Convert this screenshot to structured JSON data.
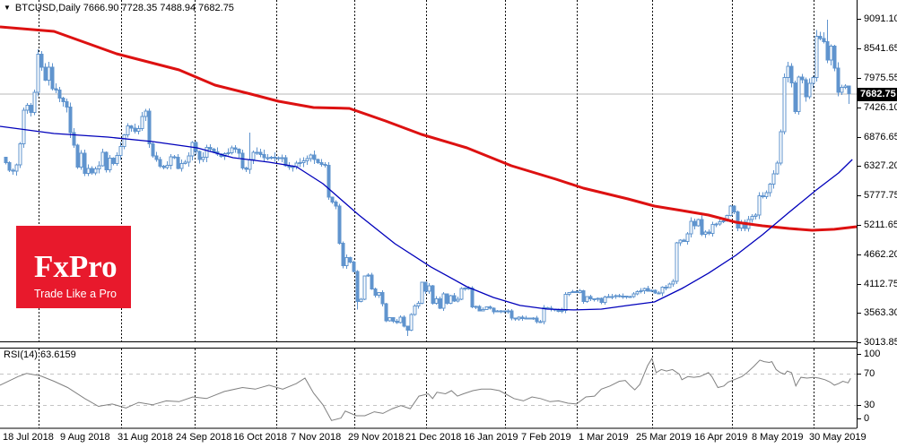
{
  "window": {
    "title": "BTCUSD,Daily 7666.90 7728.35 7488.94 7682.75"
  },
  "logo": {
    "brand": "FxPro",
    "tagline": "Trade Like a Pro",
    "bg_color": "#e8192c",
    "text_color": "#ffffff"
  },
  "price_tag": "7682.75",
  "indicator_label": "RSI(14) 63.6159",
  "colors": {
    "candle": "#6094ce",
    "ma_fast_blue": "#0000bb",
    "ma_slow_red": "#dd1111",
    "grid": "#000000",
    "rsi_line": "#808080",
    "rsi_levels": "#c4c4c4",
    "price_line": "#b8b8b8",
    "tag_bg": "#000000",
    "tag_text": "#ffffff"
  },
  "chart_data": [
    {
      "type": "candlestick",
      "symbol": "BTCUSD",
      "timeframe": "Daily",
      "last_bar_ohlc": {
        "open": 7666.9,
        "high": 7728.35,
        "low": 7488.94,
        "close": 7682.75
      },
      "current_price": 7682.75,
      "y_ticks": [
        9091.1,
        8541.65,
        7975.55,
        7426.1,
        6876.65,
        6327.2,
        5777.75,
        5211.65,
        4662.2,
        4112.75,
        3563.3,
        3013.85
      ],
      "x_labels": [
        "18 Jul 2018",
        "9 Aug 2018",
        "31 Aug 2018",
        "24 Sep 2018",
        "16 Oct 2018",
        "7 Nov 2018",
        "29 Nov 2018",
        "21 Dec 2018",
        "16 Jan 2019",
        "7 Feb 2019",
        "1 Mar 2019",
        "25 Mar 2019",
        "16 Apr 2019",
        "8 May 2019",
        "30 May 2019"
      ],
      "first_open": 6490,
      "closes": [
        6385,
        6250,
        6230,
        6350,
        6740,
        7378,
        7469,
        7331,
        7711,
        8424,
        8181,
        7941,
        8183,
        7779,
        7750,
        7603,
        7535,
        7434,
        6951,
        6718,
        6305,
        6568,
        6184,
        6281,
        6197,
        6271,
        6334,
        6580,
        6256,
        6471,
        6372,
        6528,
        6688,
        6910,
        7078,
        7038,
        6978,
        7033,
        7260,
        7361,
        6746,
        6513,
        6446,
        6323,
        6300,
        6335,
        6498,
        6486,
        6281,
        6371,
        6398,
        6519,
        6764,
        6597,
        6446,
        6490,
        6676,
        6644,
        6589,
        6549,
        6506,
        6560,
        6576,
        6663,
        6638,
        6565,
        6286,
        6261,
        6450,
        6586,
        6586,
        6544,
        6485,
        6478,
        6492,
        6480,
        6473,
        6481,
        6332,
        6305,
        6317,
        6377,
        6388,
        6419,
        6461,
        6530,
        6447,
        6385,
        6359,
        6339,
        5738,
        5648,
        5575,
        4871,
        4451,
        4602,
        4521,
        4347,
        3779,
        3820,
        4257,
        4278,
        4017,
        3896,
        3944,
        3739,
        3419,
        3476,
        3410,
        3387,
        3485,
        3314,
        3243,
        3535,
        3695,
        3745,
        4140,
        3974,
        4076,
        3747,
        3830,
        3654,
        3923,
        3743,
        3891,
        3787,
        3820,
        4025,
        4030,
        4035,
        3678,
        3687,
        3604,
        3631,
        3678,
        3657,
        3590,
        3604,
        3585,
        3600,
        3602,
        3470,
        3448,
        3486,
        3457,
        3466,
        3459,
        3467,
        3403,
        3399,
        3662,
        3657,
        3637,
        3621,
        3598,
        3615,
        3914,
        3946,
        3966,
        3947,
        3979,
        3780,
        3869,
        3834,
        3830,
        3839,
        3760,
        3867,
        3875,
        3871,
        3890,
        3882,
        3880,
        3867,
        3870,
        3924,
        3968,
        3979,
        4024,
        3974,
        3989,
        3937,
        3937,
        4051,
        4043,
        4106,
        4158,
        4880,
        4930,
        4911,
        5051,
        5290,
        5200,
        5323,
        5043,
        5088,
        5063,
        5226,
        5237,
        5276,
        5292,
        5399,
        5572,
        5464,
        5162,
        5269,
        5148,
        5321,
        5377,
        5402,
        5768,
        5746,
        5829,
        5982,
        6175,
        6378,
        6971,
        7986,
        8200,
        7884,
        7347,
        8000,
        7947,
        7626,
        7877,
        7987,
        8760,
        8717,
        8659,
        8320,
        8574,
        8165,
        7707,
        7806,
        7826,
        7682.75
      ],
      "wick_overrides": {
        "68": {
          "high": 6950
        },
        "98": {
          "low": 3630
        },
        "112": {
          "low": 3130
        },
        "229": {
          "high": 9074
        },
        "235": {
          "high": 7728.35,
          "low": 7488.94
        }
      },
      "overlays": [
        {
          "name": "ma-slow-red",
          "color": "#dd1111",
          "width": 3,
          "points": [
            [
              0.0,
              8940
            ],
            [
              0.063,
              8855
            ],
            [
              0.136,
              8435
            ],
            [
              0.209,
              8132
            ],
            [
              0.251,
              7846
            ],
            [
              0.293,
              7677
            ],
            [
              0.325,
              7543
            ],
            [
              0.366,
              7425
            ],
            [
              0.408,
              7408
            ],
            [
              0.45,
              7172
            ],
            [
              0.492,
              6920
            ],
            [
              0.545,
              6667
            ],
            [
              0.597,
              6330
            ],
            [
              0.649,
              6078
            ],
            [
              0.681,
              5910
            ],
            [
              0.733,
              5708
            ],
            [
              0.764,
              5573
            ],
            [
              0.796,
              5489
            ],
            [
              0.827,
              5405
            ],
            [
              0.859,
              5270
            ],
            [
              0.89,
              5203
            ],
            [
              0.921,
              5152
            ],
            [
              0.948,
              5119
            ],
            [
              0.974,
              5136
            ],
            [
              1.0,
              5186
            ]
          ]
        },
        {
          "name": "ma-fast-blue",
          "color": "#0000bb",
          "width": 1.3,
          "points": [
            [
              0.0,
              7071
            ],
            [
              0.063,
              6936
            ],
            [
              0.126,
              6869
            ],
            [
              0.178,
              6785
            ],
            [
              0.23,
              6667
            ],
            [
              0.272,
              6482
            ],
            [
              0.314,
              6398
            ],
            [
              0.346,
              6314
            ],
            [
              0.377,
              5994
            ],
            [
              0.419,
              5405
            ],
            [
              0.461,
              4866
            ],
            [
              0.503,
              4429
            ],
            [
              0.545,
              4058
            ],
            [
              0.576,
              3856
            ],
            [
              0.607,
              3705
            ],
            [
              0.639,
              3637
            ],
            [
              0.67,
              3621
            ],
            [
              0.702,
              3637
            ],
            [
              0.733,
              3705
            ],
            [
              0.764,
              3772
            ],
            [
              0.796,
              4024
            ],
            [
              0.827,
              4311
            ],
            [
              0.859,
              4647
            ],
            [
              0.89,
              5034
            ],
            [
              0.921,
              5455
            ],
            [
              0.953,
              5876
            ],
            [
              0.979,
              6196
            ],
            [
              0.995,
              6448
            ]
          ]
        }
      ]
    },
    {
      "type": "line",
      "name": "RSI",
      "period": 14,
      "value": 63.6159,
      "range": [
        0,
        100
      ],
      "levels": [
        70,
        30
      ],
      "y_ticks": [
        100,
        70,
        30,
        0
      ],
      "points": [
        [
          0.0,
          55
        ],
        [
          0.021,
          66
        ],
        [
          0.031,
          70
        ],
        [
          0.047,
          67
        ],
        [
          0.063,
          60
        ],
        [
          0.079,
          52
        ],
        [
          0.099,
          38
        ],
        [
          0.115,
          28
        ],
        [
          0.131,
          31
        ],
        [
          0.147,
          26
        ],
        [
          0.162,
          33
        ],
        [
          0.178,
          30
        ],
        [
          0.194,
          35
        ],
        [
          0.209,
          34
        ],
        [
          0.225,
          40
        ],
        [
          0.241,
          38
        ],
        [
          0.262,
          47
        ],
        [
          0.283,
          52
        ],
        [
          0.298,
          50
        ],
        [
          0.314,
          55
        ],
        [
          0.33,
          50
        ],
        [
          0.346,
          57
        ],
        [
          0.356,
          64
        ],
        [
          0.366,
          45
        ],
        [
          0.377,
          30
        ],
        [
          0.387,
          10
        ],
        [
          0.398,
          13
        ],
        [
          0.403,
          22
        ],
        [
          0.416,
          16
        ],
        [
          0.426,
          16
        ],
        [
          0.437,
          21
        ],
        [
          0.447,
          19
        ],
        [
          0.458,
          25
        ],
        [
          0.468,
          29
        ],
        [
          0.479,
          25
        ],
        [
          0.489,
          41
        ],
        [
          0.5,
          44
        ],
        [
          0.505,
          38
        ],
        [
          0.51,
          46
        ],
        [
          0.52,
          44
        ],
        [
          0.527,
          48
        ],
        [
          0.534,
          41
        ],
        [
          0.541,
          44
        ],
        [
          0.552,
          48
        ],
        [
          0.562,
          50
        ],
        [
          0.573,
          50
        ],
        [
          0.583,
          48
        ],
        [
          0.59,
          44
        ],
        [
          0.6,
          38
        ],
        [
          0.611,
          35
        ],
        [
          0.621,
          40
        ],
        [
          0.631,
          38
        ],
        [
          0.642,
          34
        ],
        [
          0.652,
          35
        ],
        [
          0.663,
          32
        ],
        [
          0.673,
          31
        ],
        [
          0.684,
          40
        ],
        [
          0.694,
          41
        ],
        [
          0.702,
          50
        ],
        [
          0.712,
          54
        ],
        [
          0.723,
          60
        ],
        [
          0.73,
          61
        ],
        [
          0.736,
          54
        ],
        [
          0.741,
          49
        ],
        [
          0.747,
          56
        ],
        [
          0.756,
          80
        ],
        [
          0.761,
          89
        ],
        [
          0.766,
          71
        ],
        [
          0.772,
          75
        ],
        [
          0.778,
          73
        ],
        [
          0.785,
          75
        ],
        [
          0.793,
          69
        ],
        [
          0.796,
          62
        ],
        [
          0.803,
          66
        ],
        [
          0.81,
          65
        ],
        [
          0.817,
          66
        ],
        [
          0.827,
          71
        ],
        [
          0.831,
          66
        ],
        [
          0.838,
          52
        ],
        [
          0.845,
          54
        ],
        [
          0.85,
          59
        ],
        [
          0.857,
          62
        ],
        [
          0.866,
          66
        ],
        [
          0.872,
          71
        ],
        [
          0.88,
          79
        ],
        [
          0.887,
          87
        ],
        [
          0.892,
          85
        ],
        [
          0.898,
          84
        ],
        [
          0.901,
          85
        ],
        [
          0.906,
          75
        ],
        [
          0.911,
          71
        ],
        [
          0.916,
          69
        ],
        [
          0.919,
          73
        ],
        [
          0.924,
          71
        ],
        [
          0.929,
          54
        ],
        [
          0.932,
          60
        ],
        [
          0.935,
          65
        ],
        [
          0.942,
          64
        ],
        [
          0.95,
          65
        ],
        [
          0.956,
          64
        ],
        [
          0.963,
          62
        ],
        [
          0.969,
          59
        ],
        [
          0.974,
          55
        ],
        [
          0.979,
          57
        ],
        [
          0.984,
          60
        ],
        [
          0.99,
          58
        ],
        [
          0.993,
          63.6
        ]
      ]
    }
  ]
}
